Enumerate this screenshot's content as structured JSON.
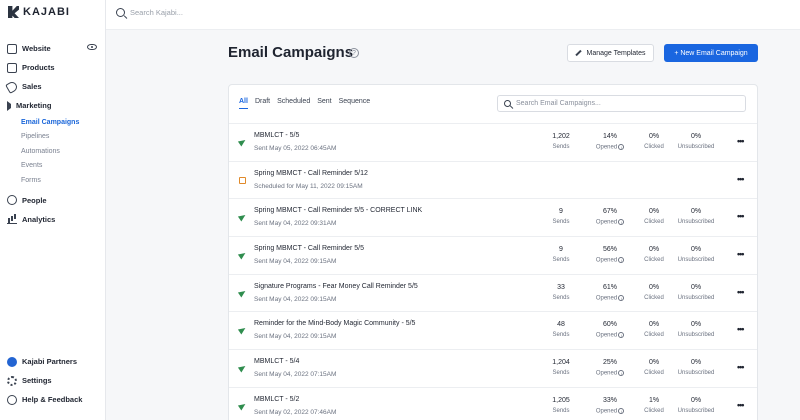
{
  "brand": {
    "name": "KAJABI"
  },
  "topbar": {
    "search_placeholder": "Search Kajabi..."
  },
  "sidebar": {
    "items": [
      {
        "label": "Website",
        "icon": "monitor-icon"
      },
      {
        "label": "Products",
        "icon": "box-icon"
      },
      {
        "label": "Sales",
        "icon": "tag-icon"
      },
      {
        "label": "Marketing",
        "icon": "megaphone-icon"
      }
    ],
    "marketing_sub": [
      {
        "label": "Email Campaigns",
        "active": true
      },
      {
        "label": "Pipelines"
      },
      {
        "label": "Automations"
      },
      {
        "label": "Events"
      },
      {
        "label": "Forms"
      }
    ],
    "items2": [
      {
        "label": "People",
        "icon": "person-icon"
      },
      {
        "label": "Analytics",
        "icon": "chart-icon"
      }
    ],
    "bottom": [
      {
        "label": "Kajabi Partners",
        "icon": "partner-icon"
      },
      {
        "label": "Settings",
        "icon": "gear-icon"
      },
      {
        "label": "Help & Feedback",
        "icon": "help-icon"
      }
    ]
  },
  "header": {
    "title": "Email Campaigns",
    "help": "?",
    "manage_templates": "Manage Templates",
    "new_campaign": "+ New Email Campaign"
  },
  "tabs": [
    "All",
    "Draft",
    "Scheduled",
    "Sent",
    "Sequence"
  ],
  "campaign_search_placeholder": "Search Email Campaigns...",
  "labels": {
    "sends": "Sends",
    "opened": "Opened",
    "clicked": "Clicked",
    "unsubscribed": "Unsubscribed",
    "info": "i",
    "more": "•••"
  },
  "campaigns": [
    {
      "name": "MBMLCT - 5/5",
      "sub": "Sent May 05, 2022 06:45AM",
      "type": "sent",
      "sends": "1,202",
      "opened": "14%",
      "clicked": "0%",
      "unsub": "0%"
    },
    {
      "name": "Spring MBMCT - Call Reminder 5/12",
      "sub": "Scheduled for May 11, 2022 09:15AM",
      "type": "scheduled"
    },
    {
      "name": "Spring MBMCT - Call Reminder 5/5 - CORRECT LINK",
      "sub": "Sent May 04, 2022 09:31AM",
      "type": "sent",
      "sends": "9",
      "opened": "67%",
      "clicked": "0%",
      "unsub": "0%"
    },
    {
      "name": "Spring MBMCT - Call Reminder 5/5",
      "sub": "Sent May 04, 2022 09:15AM",
      "type": "sent",
      "sends": "9",
      "opened": "56%",
      "clicked": "0%",
      "unsub": "0%"
    },
    {
      "name": "Signature Programs - Fear Money Call Reminder 5/5",
      "sub": "Sent May 04, 2022 09:15AM",
      "type": "sent",
      "sends": "33",
      "opened": "61%",
      "clicked": "0%",
      "unsub": "0%"
    },
    {
      "name": "Reminder for the Mind-Body Magic Community - 5/5",
      "sub": "Sent May 04, 2022 09:15AM",
      "type": "sent",
      "sends": "48",
      "opened": "60%",
      "clicked": "0%",
      "unsub": "0%"
    },
    {
      "name": "MBMLCT - 5/4",
      "sub": "Sent May 04, 2022 07:15AM",
      "type": "sent",
      "sends": "1,204",
      "opened": "25%",
      "clicked": "0%",
      "unsub": "0%"
    },
    {
      "name": "MBMLCT - 5/2",
      "sub": "Sent May 02, 2022 07:46AM",
      "type": "sent",
      "sends": "1,205",
      "opened": "33%",
      "clicked": "1%",
      "unsub": "0%"
    }
  ]
}
